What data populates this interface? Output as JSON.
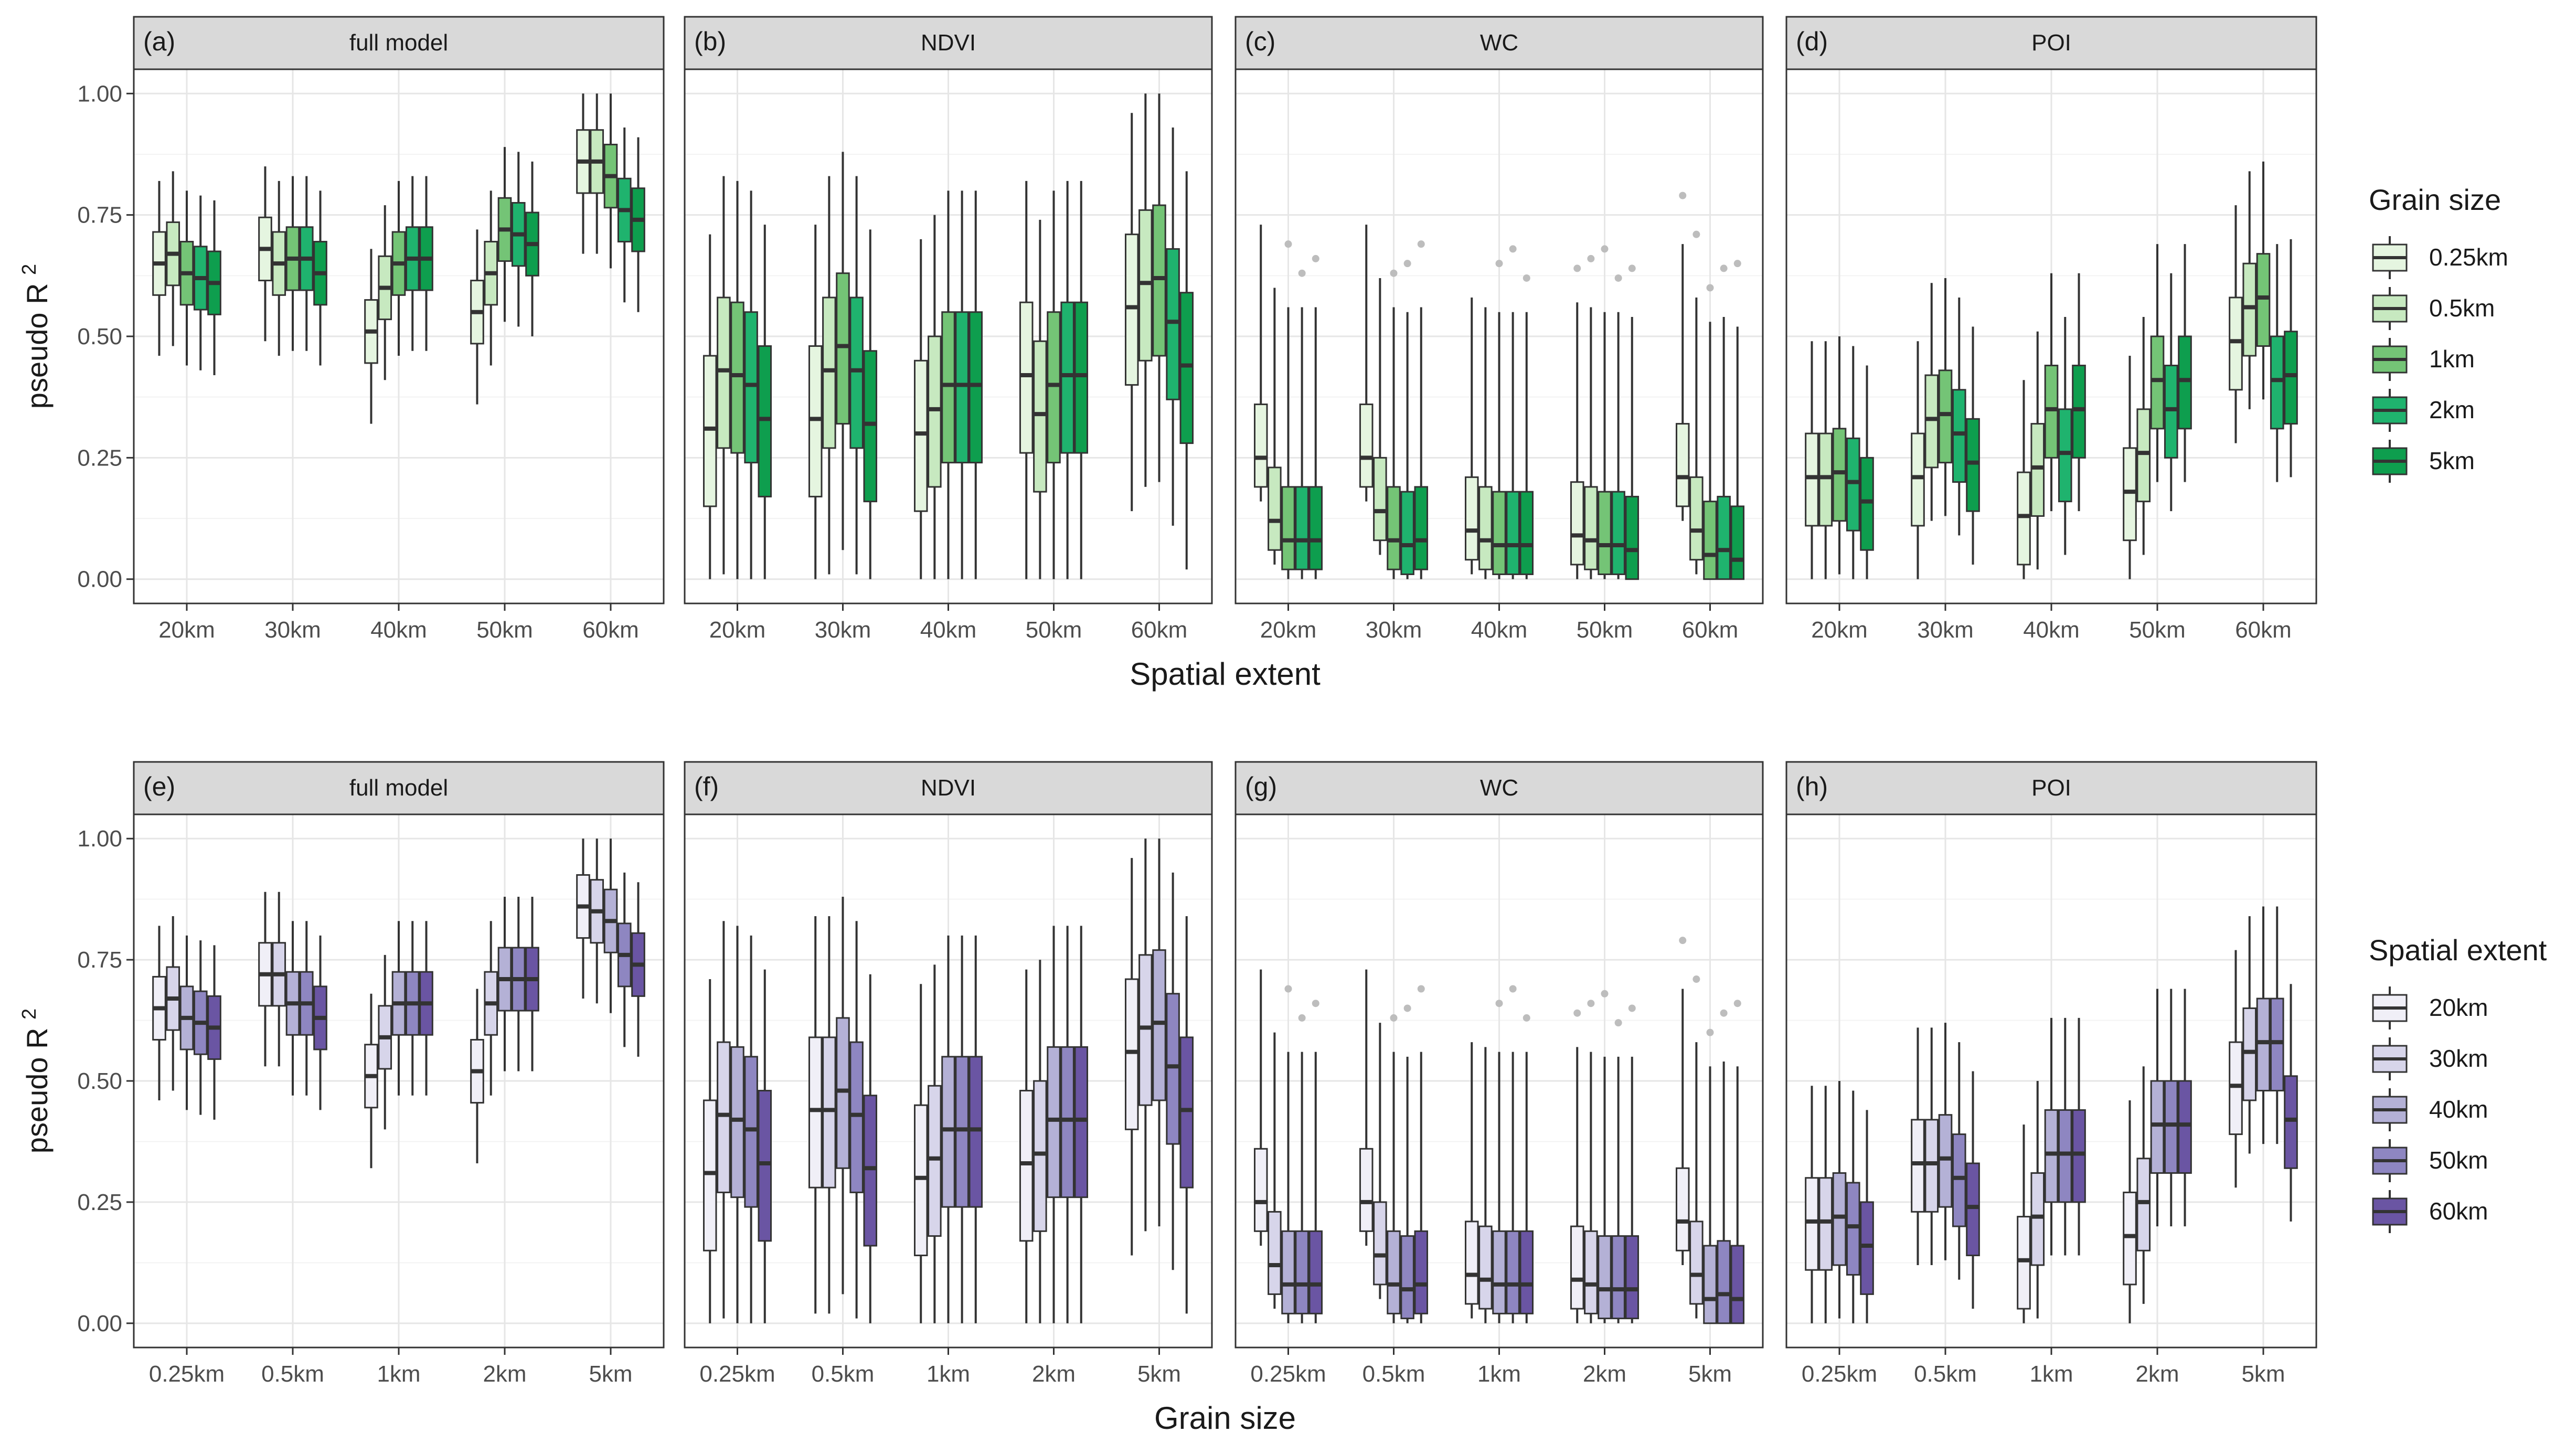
{
  "chart_data": {
    "type": "boxplot",
    "y_axis_label": "pseudo R",
    "y_axis_label_superscript": "2",
    "y_ticks": [
      "0.00",
      "0.25",
      "0.50",
      "0.75",
      "1.00"
    ],
    "y_tick_values": [
      0,
      0.25,
      0.5,
      0.75,
      1.0
    ],
    "ylim": [
      -0.05,
      1.05
    ],
    "rows": [
      {
        "xlabel": "Spatial extent",
        "categories": [
          "20km",
          "30km",
          "40km",
          "50km",
          "60km"
        ],
        "legend_title": "Grain size",
        "legend_entries": [
          "0.25km",
          "0.5km",
          "1km",
          "2km",
          "5km"
        ],
        "colors": [
          "#e5f5e0",
          "#c7e9c0",
          "#74c476",
          "#1fb36e",
          "#0e9e4e"
        ],
        "panels": [
          {
            "tag": "(a)",
            "title": "full model",
            "kind": "full",
            "median": [
              [
                0.65,
                0.67,
                0.63,
                0.62,
                0.61
              ],
              [
                0.68,
                0.65,
                0.66,
                0.66,
                0.63
              ],
              [
                0.51,
                0.6,
                0.65,
                0.66,
                0.66
              ],
              [
                0.55,
                0.63,
                0.72,
                0.71,
                0.69
              ],
              [
                0.86,
                0.86,
                0.83,
                0.76,
                0.74
              ]
            ]
          },
          {
            "tag": "(b)",
            "title": "NDVI",
            "kind": "ndvi",
            "median": [
              [
                0.31,
                0.43,
                0.42,
                0.4,
                0.33
              ],
              [
                0.33,
                0.43,
                0.48,
                0.43,
                0.32
              ],
              [
                0.3,
                0.35,
                0.4,
                0.4,
                0.4
              ],
              [
                0.42,
                0.34,
                0.4,
                0.42,
                0.42
              ],
              [
                0.56,
                0.61,
                0.62,
                0.53,
                0.44
              ]
            ]
          },
          {
            "tag": "(c)",
            "title": "WC",
            "kind": "wc",
            "median": [
              [
                0.25,
                0.12,
                0.08,
                0.08,
                0.08
              ],
              [
                0.25,
                0.14,
                0.08,
                0.07,
                0.08
              ],
              [
                0.1,
                0.08,
                0.07,
                0.07,
                0.07
              ],
              [
                0.09,
                0.08,
                0.07,
                0.07,
                0.06
              ],
              [
                0.21,
                0.1,
                0.05,
                0.06,
                0.04
              ]
            ]
          },
          {
            "tag": "(d)",
            "title": "POI",
            "kind": "poi",
            "median": [
              [
                0.21,
                0.21,
                0.22,
                0.2,
                0.16
              ],
              [
                0.21,
                0.33,
                0.34,
                0.3,
                0.24
              ],
              [
                0.13,
                0.23,
                0.35,
                0.26,
                0.35
              ],
              [
                0.18,
                0.26,
                0.41,
                0.35,
                0.41
              ],
              [
                0.49,
                0.56,
                0.58,
                0.41,
                0.42
              ]
            ]
          }
        ]
      },
      {
        "xlabel": "Grain size",
        "categories": [
          "0.25km",
          "0.5km",
          "1km",
          "2km",
          "5km"
        ],
        "legend_title": "Spatial extent",
        "legend_entries": [
          "20km",
          "30km",
          "40km",
          "50km",
          "60km"
        ],
        "colors": [
          "#f0eff7",
          "#d7d5ea",
          "#b4b1d6",
          "#8e86c1",
          "#6a55a3"
        ],
        "panels": [
          {
            "tag": "(e)",
            "title": "full model",
            "kind": "full",
            "median": [
              [
                0.65,
                0.67,
                0.63,
                0.62,
                0.61
              ],
              [
                0.72,
                0.72,
                0.66,
                0.66,
                0.63
              ],
              [
                0.51,
                0.59,
                0.66,
                0.66,
                0.66
              ],
              [
                0.52,
                0.66,
                0.71,
                0.71,
                0.71
              ],
              [
                0.86,
                0.85,
                0.83,
                0.76,
                0.74
              ]
            ]
          },
          {
            "tag": "(f)",
            "title": "NDVI",
            "kind": "ndvi",
            "median": [
              [
                0.31,
                0.43,
                0.42,
                0.4,
                0.33
              ],
              [
                0.44,
                0.44,
                0.48,
                0.43,
                0.32
              ],
              [
                0.3,
                0.34,
                0.4,
                0.4,
                0.4
              ],
              [
                0.33,
                0.35,
                0.42,
                0.42,
                0.42
              ],
              [
                0.56,
                0.61,
                0.62,
                0.53,
                0.44
              ]
            ]
          },
          {
            "tag": "(g)",
            "title": "WC",
            "kind": "wc",
            "median": [
              [
                0.25,
                0.12,
                0.08,
                0.08,
                0.08
              ],
              [
                0.25,
                0.14,
                0.08,
                0.07,
                0.08
              ],
              [
                0.1,
                0.09,
                0.08,
                0.08,
                0.08
              ],
              [
                0.09,
                0.08,
                0.07,
                0.07,
                0.07
              ],
              [
                0.21,
                0.1,
                0.05,
                0.06,
                0.05
              ]
            ]
          },
          {
            "tag": "(h)",
            "title": "POI",
            "kind": "poi",
            "median": [
              [
                0.21,
                0.21,
                0.22,
                0.2,
                0.16
              ],
              [
                0.33,
                0.33,
                0.34,
                0.3,
                0.24
              ],
              [
                0.13,
                0.22,
                0.35,
                0.35,
                0.35
              ],
              [
                0.18,
                0.25,
                0.41,
                0.41,
                0.41
              ],
              [
                0.49,
                0.56,
                0.58,
                0.58,
                0.42
              ]
            ]
          }
        ]
      }
    ]
  }
}
